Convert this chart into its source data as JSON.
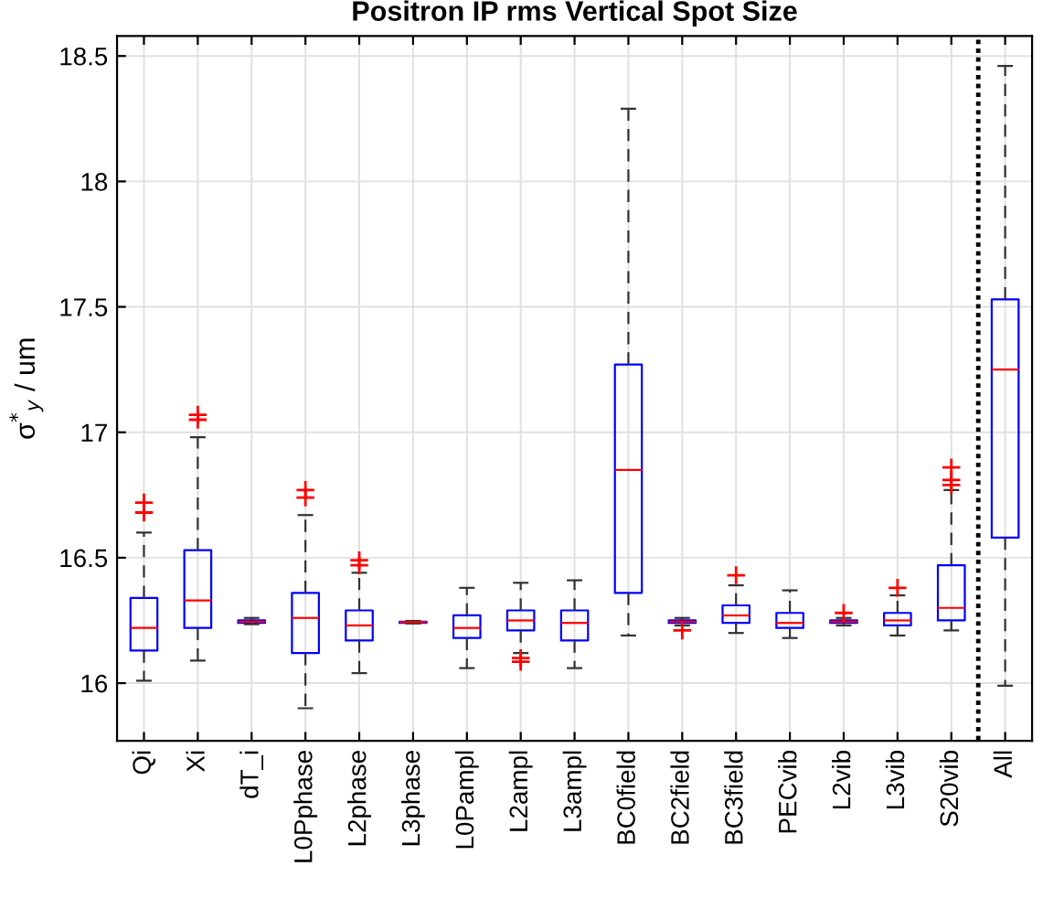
{
  "chart_data": {
    "type": "box",
    "title": "Positron IP rms Vertical Spot Size",
    "ylabel": "σ$^{*}$$_{y}$ / um",
    "categories": [
      "Qi",
      "Xi",
      "dT_i",
      "L0Pphase",
      "L2phase",
      "L3phase",
      "L0Pampl",
      "L2ampl",
      "L3ampl",
      "BC0field",
      "BC2field",
      "BC3field",
      "PECvib",
      "L2vib",
      "L3vib",
      "S20vib",
      "All"
    ],
    "boxes": [
      {
        "low": 16.01,
        "q1": 16.13,
        "median": 16.22,
        "q3": 16.34,
        "high": 16.6,
        "outliers": [
          16.72,
          16.68
        ]
      },
      {
        "low": 16.09,
        "q1": 16.22,
        "median": 16.33,
        "q3": 16.53,
        "high": 16.98,
        "outliers": [
          17.07,
          17.05
        ]
      },
      {
        "low": 16.235,
        "q1": 16.24,
        "median": 16.245,
        "q3": 16.25,
        "high": 16.26
      },
      {
        "low": 15.9,
        "q1": 16.12,
        "median": 16.26,
        "q3": 16.36,
        "high": 16.67,
        "outliers": [
          16.77,
          16.74
        ]
      },
      {
        "low": 16.04,
        "q1": 16.17,
        "median": 16.23,
        "q3": 16.29,
        "high": 16.44,
        "outliers": [
          16.49,
          16.47
        ]
      },
      {
        "low": 16.238,
        "q1": 16.24,
        "median": 16.243,
        "q3": 16.245,
        "high": 16.248
      },
      {
        "low": 16.06,
        "q1": 16.18,
        "median": 16.22,
        "q3": 16.27,
        "high": 16.38
      },
      {
        "low": 16.12,
        "q1": 16.21,
        "median": 16.25,
        "q3": 16.29,
        "high": 16.4,
        "outliers": [
          16.1,
          16.085
        ]
      },
      {
        "low": 16.06,
        "q1": 16.17,
        "median": 16.24,
        "q3": 16.29,
        "high": 16.41
      },
      {
        "low": 16.19,
        "q1": 16.36,
        "median": 16.85,
        "q3": 17.27,
        "high": 18.29
      },
      {
        "low": 16.23,
        "q1": 16.24,
        "median": 16.245,
        "q3": 16.25,
        "high": 16.26,
        "outliers": [
          16.21
        ]
      },
      {
        "low": 16.2,
        "q1": 16.24,
        "median": 16.27,
        "q3": 16.31,
        "high": 16.39,
        "outliers": [
          16.43
        ]
      },
      {
        "low": 16.18,
        "q1": 16.22,
        "median": 16.24,
        "q3": 16.28,
        "high": 16.37
      },
      {
        "low": 16.23,
        "q1": 16.24,
        "median": 16.245,
        "q3": 16.25,
        "high": 16.26,
        "outliers": [
          16.28
        ]
      },
      {
        "low": 16.19,
        "q1": 16.23,
        "median": 16.25,
        "q3": 16.28,
        "high": 16.35,
        "outliers": [
          16.38
        ]
      },
      {
        "low": 16.21,
        "q1": 16.25,
        "median": 16.3,
        "q3": 16.47,
        "high": 16.77,
        "outliers": [
          16.86,
          16.81,
          16.79
        ]
      },
      {
        "low": 15.99,
        "q1": 16.58,
        "median": 17.25,
        "q3": 17.53,
        "high": 18.46
      }
    ],
    "color": "#0000ff",
    "ylim": [
      15.77,
      18.58
    ],
    "yticks": [
      16,
      16.5,
      17,
      17.5,
      18,
      18.5
    ],
    "grid": true
  }
}
